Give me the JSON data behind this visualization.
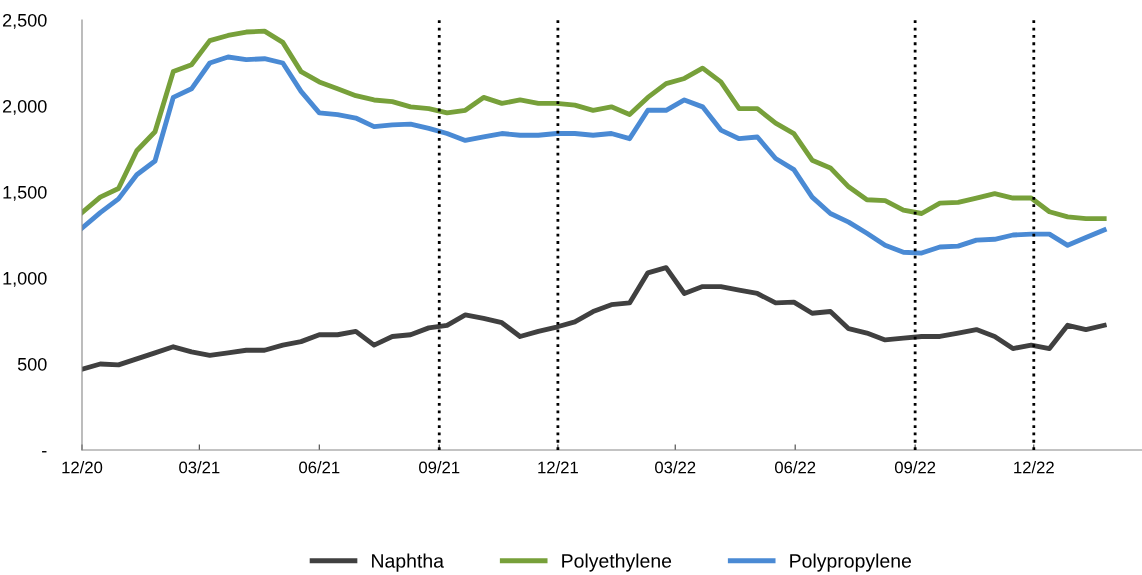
{
  "chart_data": {
    "type": "line",
    "x": [
      "2020-12-01",
      "2020-12-15",
      "2020-12-29",
      "2021-01-12",
      "2021-01-26",
      "2021-02-09",
      "2021-02-23",
      "2021-03-09",
      "2021-03-23",
      "2021-04-06",
      "2021-04-20",
      "2021-05-04",
      "2021-05-18",
      "2021-06-01",
      "2021-06-15",
      "2021-06-29",
      "2021-07-13",
      "2021-07-27",
      "2021-08-10",
      "2021-08-24",
      "2021-09-07",
      "2021-09-21",
      "2021-10-05",
      "2021-10-19",
      "2021-11-02",
      "2021-11-16",
      "2021-11-30",
      "2021-12-14",
      "2021-12-28",
      "2022-01-11",
      "2022-01-25",
      "2022-02-08",
      "2022-02-22",
      "2022-03-08",
      "2022-03-22",
      "2022-04-05",
      "2022-04-19",
      "2022-05-03",
      "2022-05-17",
      "2022-05-31",
      "2022-06-14",
      "2022-06-28",
      "2022-07-12",
      "2022-07-26",
      "2022-08-09",
      "2022-08-23",
      "2022-09-06",
      "2022-09-20",
      "2022-10-04",
      "2022-10-18",
      "2022-11-01",
      "2022-11-15",
      "2022-11-29",
      "2022-12-13",
      "2022-12-27",
      "2023-01-10",
      "2023-01-24"
    ],
    "series": [
      {
        "name": "Naphtha",
        "color": "#404040",
        "values": [
          470,
          500,
          495,
          530,
          565,
          600,
          570,
          550,
          565,
          580,
          580,
          610,
          630,
          670,
          670,
          690,
          610,
          660,
          670,
          710,
          725,
          785,
          765,
          740,
          660,
          690,
          715,
          745,
          805,
          845,
          855,
          1030,
          1060,
          910,
          950,
          950,
          930,
          910,
          855,
          860,
          795,
          805,
          705,
          680,
          640,
          650,
          660,
          660,
          680,
          700,
          660,
          590,
          610,
          590,
          725,
          700,
          725
        ]
      },
      {
        "name": "Polyethylene",
        "color": "#77a03a",
        "values": [
          1380,
          1470,
          1520,
          1740,
          1850,
          2200,
          2240,
          2380,
          2410,
          2430,
          2435,
          2370,
          2200,
          2140,
          2100,
          2060,
          2035,
          2025,
          1995,
          1985,
          1960,
          1975,
          2050,
          2015,
          2035,
          2015,
          2015,
          2005,
          1975,
          1995,
          1950,
          2050,
          2130,
          2160,
          2220,
          2140,
          1985,
          1985,
          1900,
          1840,
          1685,
          1640,
          1530,
          1455,
          1450,
          1395,
          1375,
          1435,
          1440,
          1465,
          1490,
          1465,
          1465,
          1385,
          1355,
          1345,
          1345
        ]
      },
      {
        "name": "Polypropylene",
        "color": "#4a8ad4",
        "values": [
          1290,
          1380,
          1460,
          1600,
          1680,
          2050,
          2100,
          2250,
          2285,
          2270,
          2275,
          2250,
          2085,
          1960,
          1950,
          1930,
          1880,
          1890,
          1895,
          1870,
          1840,
          1800,
          1820,
          1840,
          1830,
          1830,
          1840,
          1840,
          1830,
          1840,
          1810,
          1975,
          1975,
          2035,
          1995,
          1860,
          1810,
          1820,
          1695,
          1630,
          1470,
          1375,
          1325,
          1260,
          1190,
          1150,
          1145,
          1180,
          1185,
          1220,
          1225,
          1250,
          1255,
          1255,
          1190,
          1235,
          1280
        ]
      }
    ],
    "xlim": [
      "2020-12-01",
      "2023-02-22"
    ],
    "xticks": [
      {
        "value": "2020-12-01",
        "label": "12/20"
      },
      {
        "value": "2021-03-01",
        "label": "03/21"
      },
      {
        "value": "2021-06-01",
        "label": "06/21"
      },
      {
        "value": "2021-09-01",
        "label": "09/21"
      },
      {
        "value": "2021-12-01",
        "label": "12/21"
      },
      {
        "value": "2022-03-01",
        "label": "03/22"
      },
      {
        "value": "2022-06-01",
        "label": "06/22"
      },
      {
        "value": "2022-09-01",
        "label": "09/22"
      },
      {
        "value": "2022-12-01",
        "label": "12/22"
      }
    ],
    "ylim": [
      0,
      2500
    ],
    "yticks": [
      {
        "value": 0,
        "label": "-"
      },
      500,
      {
        "value": 1000,
        "label": "1,000"
      },
      {
        "value": 1500,
        "label": "1,500"
      },
      {
        "value": 2000,
        "label": "2,000"
      },
      {
        "value": 2500,
        "label": "2,500"
      }
    ],
    "ref_lines": [
      {
        "axis": "x",
        "value": "2021-09-01",
        "color": "#000000",
        "line_style": "dotted"
      },
      {
        "axis": "x",
        "value": "2021-12-01",
        "color": "#000000",
        "line_style": "dotted"
      },
      {
        "axis": "x",
        "value": "2022-09-01",
        "color": "#000000",
        "line_style": "dotted"
      },
      {
        "axis": "x",
        "value": "2022-12-01",
        "color": "#000000",
        "line_style": "dotted"
      }
    ],
    "grid": false,
    "legend": "bottom",
    "marker": "none",
    "line_style": "solid"
  }
}
